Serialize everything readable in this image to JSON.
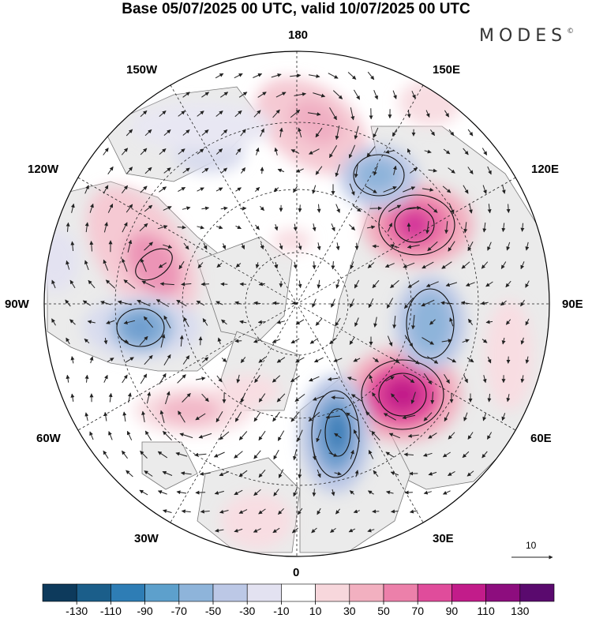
{
  "title": "Base 05/07/2025 00 UTC, valid 10/07/2025 00 UTC",
  "logo": {
    "text": "MODES",
    "mark": "©"
  },
  "lon_labels": {
    "l180": "180",
    "l150w": "150W",
    "l150e": "150E",
    "l120w": "120W",
    "l120e": "120E",
    "l90w": "90W",
    "l90e": "90E",
    "l60w": "60W",
    "l60e": "60E",
    "l30w": "30W",
    "l30e": "30E",
    "l0": "0"
  },
  "reference_vector": {
    "label": "10"
  },
  "colorbar": {
    "labels": [
      "-130",
      "-110",
      "-90",
      "-70",
      "-50",
      "-30",
      "-10",
      "10",
      "30",
      "50",
      "70",
      "90",
      "110",
      "130"
    ],
    "colors": [
      "#0d3a5c",
      "#1b5e8a",
      "#2e7db5",
      "#5da0cc",
      "#8eb4da",
      "#bcc8e6",
      "#e3e2f1",
      "#ffffff",
      "#f7d7dc",
      "#f2b0c0",
      "#ec80aa",
      "#e04c9b",
      "#c21c8a",
      "#8d0d7e",
      "#5a0a6e"
    ]
  }
}
